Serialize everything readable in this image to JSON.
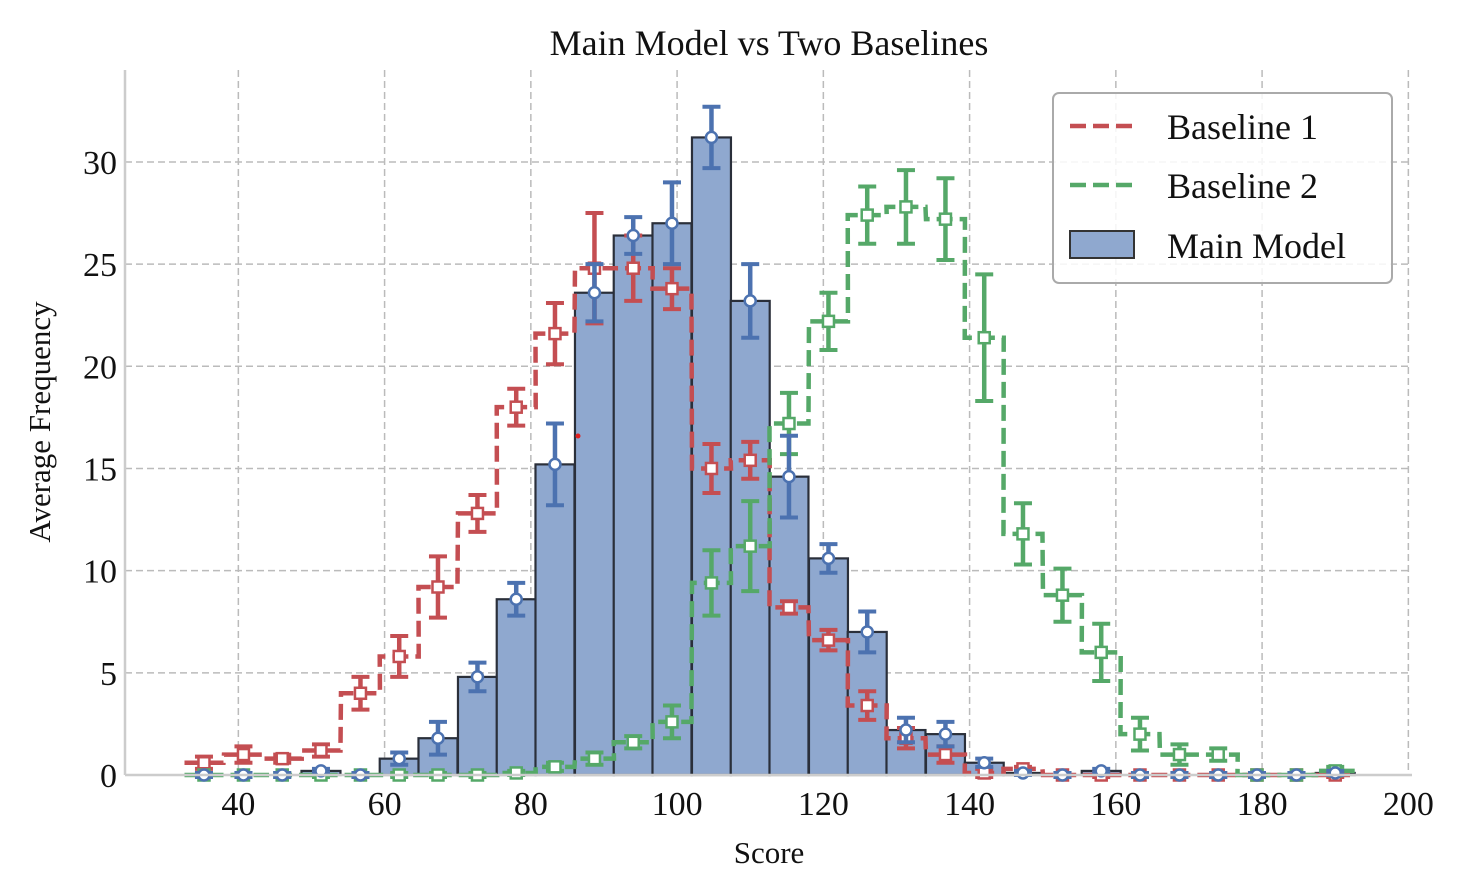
{
  "chart_data": {
    "type": "bar",
    "title": "Main Model vs Two Baselines",
    "xlabel": "Score",
    "ylabel": "Average Frequency",
    "xlim": [
      24.5,
      200.5
    ],
    "ylim": [
      0,
      34.5
    ],
    "xticks": [
      40,
      60,
      80,
      100,
      120,
      140,
      160,
      180,
      200
    ],
    "yticks": [
      0,
      5,
      10,
      15,
      20,
      25,
      30
    ],
    "grid": true,
    "legend_position": "top-right",
    "bin_width": 5.33,
    "x": [
      35.3,
      40.7,
      46.0,
      51.3,
      56.7,
      62.0,
      67.3,
      72.7,
      78.0,
      83.3,
      88.7,
      94.0,
      99.3,
      104.7,
      110.0,
      115.3,
      120.7,
      126.0,
      131.3,
      136.7,
      142.0,
      147.3,
      152.7,
      158.0,
      163.3,
      168.7,
      174.0,
      179.3,
      184.7,
      190.0
    ],
    "series": [
      {
        "name": "Main Model",
        "style": "bar",
        "color": "#4c72b0",
        "values": [
          0,
          0,
          0,
          0.2,
          0,
          0.8,
          1.8,
          4.8,
          8.6,
          15.2,
          23.6,
          26.4,
          27.0,
          31.2,
          23.2,
          14.6,
          10.6,
          7.0,
          2.2,
          2.0,
          0.6,
          0.1,
          0,
          0.2,
          0,
          0,
          0,
          0,
          0,
          0.1
        ],
        "errors": [
          0.1,
          0.1,
          0.1,
          0.1,
          0.1,
          0.3,
          0.8,
          0.7,
          0.8,
          2.0,
          1.4,
          0.9,
          2.0,
          1.5,
          1.8,
          2.0,
          0.7,
          1.0,
          0.6,
          0.6,
          0.2,
          0.1,
          0.1,
          0.1,
          0.1,
          0.1,
          0.1,
          0.1,
          0.1,
          0.1
        ]
      },
      {
        "name": "Baseline 1",
        "style": "dashed-step",
        "color": "#c44e52",
        "values": [
          0.6,
          1.0,
          0.8,
          1.2,
          4.0,
          5.8,
          9.2,
          12.8,
          18.0,
          21.6,
          24.8,
          24.8,
          23.8,
          15.0,
          15.4,
          8.2,
          6.6,
          3.4,
          1.8,
          1.0,
          0.1,
          0.3,
          0,
          0,
          0,
          0,
          0,
          0,
          0,
          0
        ],
        "errors": [
          0.3,
          0.4,
          0.2,
          0.3,
          0.8,
          1.0,
          1.5,
          0.9,
          0.9,
          1.5,
          2.7,
          1.6,
          1.0,
          1.2,
          0.9,
          0.3,
          0.5,
          0.7,
          0.5,
          0.4,
          0.2,
          0.1,
          0.1,
          0.1,
          0.1,
          0.1,
          0.1,
          0.1,
          0.1,
          0.1
        ]
      },
      {
        "name": "Baseline 2",
        "style": "dashed-step",
        "color": "#55a868",
        "values": [
          0,
          0,
          0,
          0,
          0,
          0,
          0,
          0,
          0.1,
          0.4,
          0.8,
          1.6,
          2.6,
          9.4,
          11.2,
          17.2,
          22.2,
          27.4,
          27.8,
          27.2,
          21.4,
          11.8,
          8.8,
          6.0,
          2.0,
          1.0,
          1.0,
          0,
          0,
          0.2
        ],
        "errors": [
          0.1,
          0.1,
          0.1,
          0.1,
          0.1,
          0.1,
          0.1,
          0.1,
          0.1,
          0.2,
          0.3,
          0.3,
          0.8,
          1.6,
          2.2,
          1.5,
          1.4,
          1.4,
          1.8,
          2.0,
          3.1,
          1.5,
          1.3,
          1.4,
          0.8,
          0.5,
          0.3,
          0.1,
          0.1,
          0.2
        ]
      }
    ],
    "legend": [
      "Baseline 1",
      "Baseline 2",
      "Main Model"
    ]
  }
}
